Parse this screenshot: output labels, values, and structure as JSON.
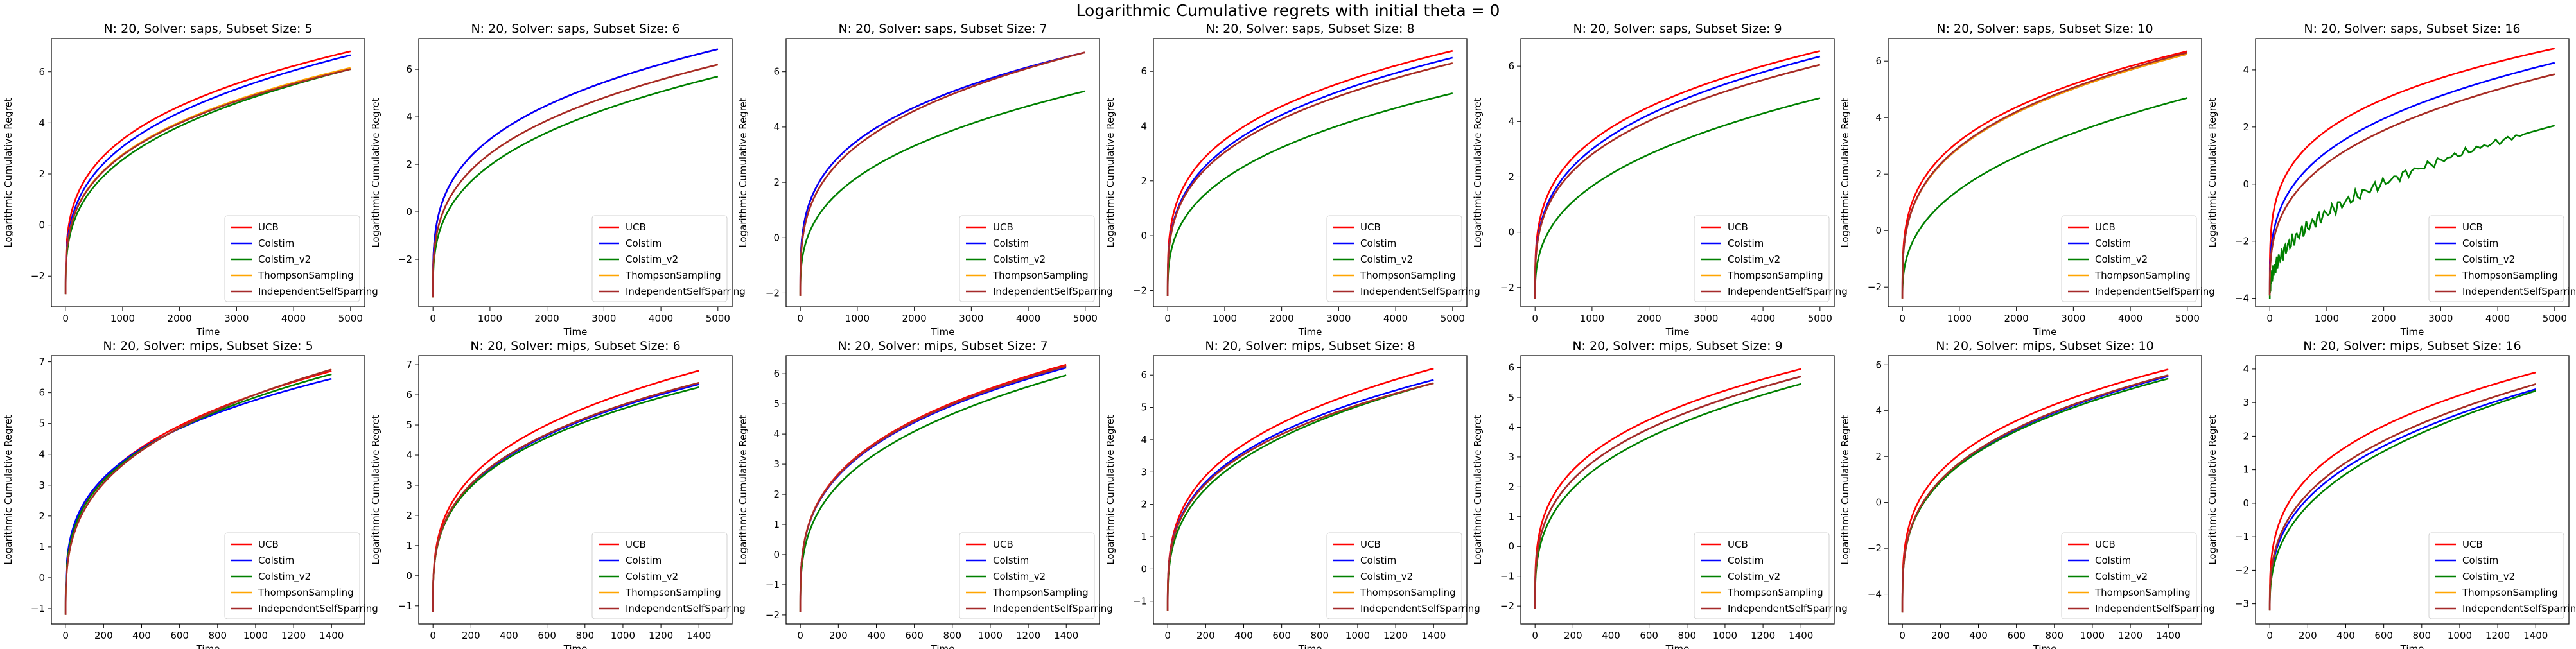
{
  "suptitle": "Logarithmic Cumulative regrets with initial theta = 0",
  "legend_labels": [
    "UCB",
    "Colstim",
    "Colstim_v2",
    "ThompsonSampling",
    "IndependentSelfSparring"
  ],
  "series_colors": [
    "#ff0000",
    "#0000ff",
    "#008000",
    "#ffa500",
    "#a52a2a"
  ],
  "chart_data": [
    {
      "type": "line",
      "title": "N: 20, Solver: saps, Subset Size: 5",
      "xlabel": "Time",
      "ylabel": "Logarithmic Cumulative Regret",
      "xlim": [
        -250,
        5250
      ],
      "ylim": [
        -3.2,
        7.3
      ],
      "xticks": [
        0,
        1000,
        2000,
        3000,
        4000,
        5000
      ],
      "yticks": [
        -2,
        0,
        2,
        4,
        6
      ],
      "legend": "lower right",
      "y0": -2.7,
      "final": [
        6.8,
        6.65,
        6.1,
        6.15,
        6.1
      ],
      "early": [
        0.28,
        0.3,
        0.32,
        0.3,
        0.3
      ],
      "noisy": []
    },
    {
      "type": "line",
      "title": "N: 20, Solver: saps, Subset Size: 6",
      "xlabel": "Time",
      "ylabel": "Logarithmic Cumulative Regret",
      "xlim": [
        -250,
        5250
      ],
      "ylim": [
        -4.0,
        7.3
      ],
      "xticks": [
        0,
        1000,
        2000,
        3000,
        4000,
        5000
      ],
      "yticks": [
        -2,
        0,
        2,
        4,
        6
      ],
      "legend": "lower right",
      "y0": -3.6,
      "final": [
        6.85,
        6.85,
        5.7,
        6.2,
        6.2
      ],
      "early": [
        0.28,
        0.28,
        0.32,
        0.3,
        0.3
      ],
      "noisy": []
    },
    {
      "type": "line",
      "title": "N: 20, Solver: saps, Subset Size: 7",
      "xlabel": "Time",
      "ylabel": "Logarithmic Cumulative Regret",
      "xlim": [
        -250,
        5250
      ],
      "ylim": [
        -2.5,
        7.2
      ],
      "xticks": [
        0,
        1000,
        2000,
        3000,
        4000,
        5000
      ],
      "yticks": [
        -2,
        0,
        2,
        4,
        6
      ],
      "legend": "lower right",
      "y0": -2.1,
      "final": [
        6.7,
        6.7,
        5.3,
        6.7,
        6.7
      ],
      "early": [
        0.28,
        0.28,
        0.34,
        0.3,
        0.3
      ],
      "noisy": []
    },
    {
      "type": "line",
      "title": "N: 20, Solver: saps, Subset Size: 8",
      "xlabel": "Time",
      "ylabel": "Logarithmic Cumulative Regret",
      "xlim": [
        -250,
        5250
      ],
      "ylim": [
        -2.6,
        7.2
      ],
      "xticks": [
        0,
        1000,
        2000,
        3000,
        4000,
        5000
      ],
      "yticks": [
        -2,
        0,
        2,
        4,
        6
      ],
      "legend": "lower right",
      "y0": -2.2,
      "final": [
        6.75,
        6.5,
        5.2,
        6.3,
        6.3
      ],
      "early": [
        0.28,
        0.3,
        0.34,
        0.3,
        0.3
      ],
      "noisy": []
    },
    {
      "type": "line",
      "title": "N: 20, Solver: saps, Subset Size: 9",
      "xlabel": "Time",
      "ylabel": "Logarithmic Cumulative Regret",
      "xlim": [
        -250,
        5250
      ],
      "ylim": [
        -2.7,
        7.0
      ],
      "xticks": [
        0,
        1000,
        2000,
        3000,
        4000,
        5000
      ],
      "yticks": [
        -2,
        0,
        2,
        4,
        6
      ],
      "legend": "lower right",
      "y0": -2.4,
      "final": [
        6.55,
        6.35,
        4.85,
        6.05,
        6.05
      ],
      "early": [
        0.28,
        0.3,
        0.36,
        0.3,
        0.3
      ],
      "noisy": []
    },
    {
      "type": "line",
      "title": "N: 20, Solver: saps, Subset Size: 10",
      "xlabel": "Time",
      "ylabel": "Logarithmic Cumulative Regret",
      "xlim": [
        -250,
        5250
      ],
      "ylim": [
        -2.7,
        6.8
      ],
      "xticks": [
        0,
        1000,
        2000,
        3000,
        4000,
        5000
      ],
      "yticks": [
        -2,
        0,
        2,
        4,
        6
      ],
      "legend": "lower right",
      "y0": -2.4,
      "final": [
        6.35,
        6.25,
        4.7,
        6.25,
        6.3
      ],
      "early": [
        0.28,
        0.3,
        0.38,
        0.3,
        0.3
      ],
      "noisy": []
    },
    {
      "type": "line",
      "title": "N: 20, Solver: saps, Subset Size: 16",
      "xlabel": "Time",
      "ylabel": "Logarithmic Cumulative Regret",
      "xlim": [
        -250,
        5250
      ],
      "ylim": [
        -4.3,
        5.1
      ],
      "xticks": [
        0,
        1000,
        2000,
        3000,
        4000,
        5000
      ],
      "yticks": [
        -4,
        -2,
        0,
        2,
        4
      ],
      "legend": "lower right",
      "y0": -3.9,
      "final": [
        4.75,
        4.25,
        2.05,
        3.85,
        3.85
      ],
      "early": [
        0.25,
        0.3,
        0.45,
        0.32,
        0.32
      ],
      "noisy": [
        2
      ]
    },
    {
      "type": "line",
      "title": "N: 20, Solver: mips, Subset Size: 5",
      "xlabel": "Time",
      "ylabel": "Logarithmic Cumulative Regret",
      "xlim": [
        -75,
        1575
      ],
      "ylim": [
        -1.5,
        7.2
      ],
      "xticks": [
        0,
        200,
        400,
        600,
        800,
        1000,
        1200,
        1400
      ],
      "yticks": [
        -1,
        0,
        1,
        2,
        3,
        4,
        5,
        6,
        7
      ],
      "legend": "lower right",
      "y0": -1.2,
      "final": [
        6.7,
        6.45,
        6.6,
        6.75,
        6.75
      ],
      "early": [
        0.3,
        0.28,
        0.3,
        0.32,
        0.32
      ],
      "noisy": []
    },
    {
      "type": "line",
      "title": "N: 20, Solver: mips, Subset Size: 6",
      "xlabel": "Time",
      "ylabel": "Logarithmic Cumulative Regret",
      "xlim": [
        -75,
        1575
      ],
      "ylim": [
        -1.6,
        7.3
      ],
      "xticks": [
        0,
        200,
        400,
        600,
        800,
        1000,
        1200,
        1400
      ],
      "yticks": [
        -1,
        0,
        1,
        2,
        3,
        4,
        5,
        6,
        7
      ],
      "legend": "lower right",
      "y0": -1.2,
      "final": [
        6.8,
        6.35,
        6.25,
        6.4,
        6.4
      ],
      "early": [
        0.3,
        0.3,
        0.3,
        0.3,
        0.3
      ],
      "noisy": []
    },
    {
      "type": "line",
      "title": "N: 20, Solver: mips, Subset Size: 7",
      "xlabel": "Time",
      "ylabel": "Logarithmic Cumulative Regret",
      "xlim": [
        -75,
        1575
      ],
      "ylim": [
        -2.3,
        6.6
      ],
      "xticks": [
        0,
        200,
        400,
        600,
        800,
        1000,
        1200,
        1400
      ],
      "yticks": [
        -2,
        -1,
        0,
        1,
        2,
        3,
        4,
        5,
        6
      ],
      "legend": "lower right",
      "y0": -1.9,
      "final": [
        6.3,
        6.2,
        5.95,
        6.25,
        6.25
      ],
      "early": [
        0.3,
        0.3,
        0.32,
        0.3,
        0.3
      ],
      "noisy": []
    },
    {
      "type": "line",
      "title": "N: 20, Solver: mips, Subset Size: 8",
      "xlabel": "Time",
      "ylabel": "Logarithmic Cumulative Regret",
      "xlim": [
        -75,
        1575
      ],
      "ylim": [
        -1.7,
        6.6
      ],
      "xticks": [
        0,
        200,
        400,
        600,
        800,
        1000,
        1200,
        1400
      ],
      "yticks": [
        -1,
        0,
        1,
        2,
        3,
        4,
        5,
        6
      ],
      "legend": "lower right",
      "y0": -1.3,
      "final": [
        6.2,
        5.85,
        5.75,
        5.75,
        5.75
      ],
      "early": [
        0.3,
        0.3,
        0.32,
        0.3,
        0.3
      ],
      "noisy": []
    },
    {
      "type": "line",
      "title": "N: 20, Solver: mips, Subset Size: 9",
      "xlabel": "Time",
      "ylabel": "Logarithmic Cumulative Regret",
      "xlim": [
        -75,
        1575
      ],
      "ylim": [
        -2.6,
        6.4
      ],
      "xticks": [
        0,
        200,
        400,
        600,
        800,
        1000,
        1200,
        1400
      ],
      "yticks": [
        -2,
        -1,
        0,
        1,
        2,
        3,
        4,
        5,
        6
      ],
      "legend": "lower right",
      "y0": -2.1,
      "final": [
        5.95,
        5.7,
        5.45,
        5.7,
        5.7
      ],
      "early": [
        0.28,
        0.3,
        0.32,
        0.3,
        0.3
      ],
      "noisy": []
    },
    {
      "type": "line",
      "title": "N: 20, Solver: mips, Subset Size: 10",
      "xlabel": "Time",
      "ylabel": "Logarithmic Cumulative Regret",
      "xlim": [
        -75,
        1575
      ],
      "ylim": [
        -5.3,
        6.4
      ],
      "xticks": [
        0,
        200,
        400,
        600,
        800,
        1000,
        1200,
        1400
      ],
      "yticks": [
        -4,
        -2,
        0,
        2,
        4,
        6
      ],
      "legend": "lower right",
      "y0": -4.8,
      "final": [
        5.8,
        5.5,
        5.4,
        5.55,
        5.55
      ],
      "early": [
        0.28,
        0.3,
        0.3,
        0.3,
        0.3
      ],
      "noisy": []
    },
    {
      "type": "line",
      "title": "N: 20, Solver: mips, Subset Size: 16",
      "xlabel": "Time",
      "ylabel": "Logarithmic Cumulative Regret",
      "xlim": [
        -75,
        1575
      ],
      "ylim": [
        -3.6,
        4.4
      ],
      "xticks": [
        0,
        200,
        400,
        600,
        800,
        1000,
        1200,
        1400
      ],
      "yticks": [
        -3,
        -2,
        -1,
        0,
        1,
        2,
        3,
        4
      ],
      "legend": "lower right",
      "y0": -3.2,
      "final": [
        3.9,
        3.4,
        3.35,
        3.55,
        3.55
      ],
      "early": [
        0.3,
        0.35,
        0.38,
        0.34,
        0.34
      ],
      "noisy": []
    }
  ]
}
